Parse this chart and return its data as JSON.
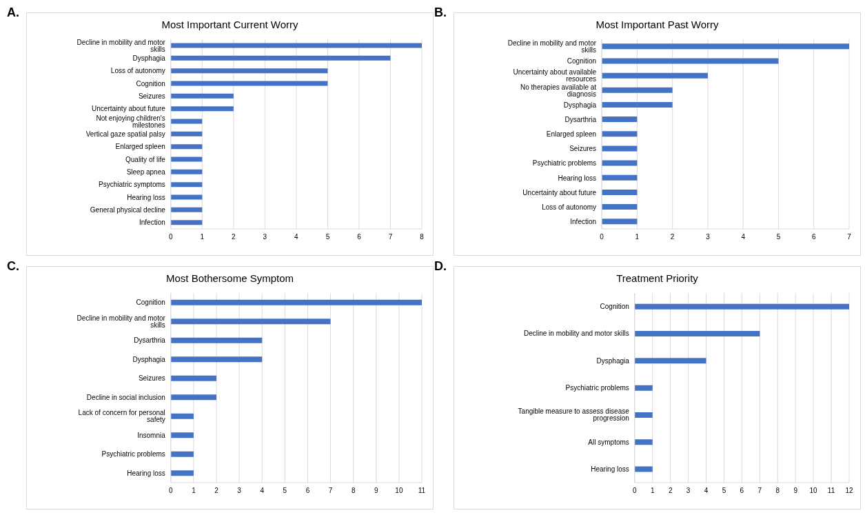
{
  "chart_data": [
    {
      "type": "bar",
      "orientation": "horizontal",
      "title": "Most Important Current Worry",
      "annotations": [
        "A."
      ],
      "color": "#4472c4",
      "grid": "x",
      "xlim": [
        0,
        8
      ],
      "xticks": [
        0,
        1,
        2,
        3,
        4,
        5,
        6,
        7,
        8
      ],
      "categories": [
        "Decline in mobility and motor skills",
        "Dysphagia",
        "Loss of autonomy",
        "Cognition",
        "Seizures",
        "Uncertainty about future",
        "Not enjoying children's milestones",
        "Vertical gaze spatial palsy",
        "Enlarged spleen",
        "Quality of life",
        "Sleep apnea",
        "Psychiatric symptoms",
        "Hearing loss",
        "General physical decline",
        "Infection"
      ],
      "values": [
        8,
        7,
        5,
        5,
        2,
        2,
        1,
        1,
        1,
        1,
        1,
        1,
        1,
        1,
        1
      ]
    },
    {
      "type": "bar",
      "orientation": "horizontal",
      "title": "Most Important Past Worry",
      "annotations": [
        "B."
      ],
      "color": "#4472c4",
      "grid": "x",
      "xlim": [
        0,
        7
      ],
      "xticks": [
        0,
        1,
        2,
        3,
        4,
        5,
        6,
        7
      ],
      "categories": [
        "Decline in mobility and motor skills",
        "Cognition",
        "Uncertainty about available resources",
        "No therapies available at diagnosis",
        "Dysphagia",
        "Dysarthria",
        "Enlarged spleen",
        "Seizures",
        "Psychiatric problems",
        "Hearing loss",
        "Uncertainty about future",
        "Loss of autonomy",
        "Infection"
      ],
      "values": [
        7,
        5,
        3,
        2,
        2,
        1,
        1,
        1,
        1,
        1,
        1,
        1,
        1
      ]
    },
    {
      "type": "bar",
      "orientation": "horizontal",
      "title": "Most Bothersome Symptom",
      "annotations": [
        "C."
      ],
      "color": "#4472c4",
      "grid": "x",
      "xlim": [
        0,
        11
      ],
      "xticks": [
        0,
        1,
        2,
        3,
        4,
        5,
        6,
        7,
        8,
        9,
        10,
        11
      ],
      "categories": [
        "Cognition",
        "Decline in mobility and motor skills",
        "Dysarthria",
        "Dysphagia",
        "Seizures",
        "Decline in social inclusion",
        "Lack of concern for personal safety",
        "Insomnia",
        "Psychiatric problems",
        "Hearing loss"
      ],
      "values": [
        11,
        7,
        4,
        4,
        2,
        2,
        1,
        1,
        1,
        1
      ]
    },
    {
      "type": "bar",
      "orientation": "horizontal",
      "title": "Treatment Priority",
      "annotations": [
        "D."
      ],
      "color": "#4472c4",
      "grid": "x",
      "xlim": [
        0,
        12
      ],
      "xticks": [
        0,
        1,
        2,
        3,
        4,
        5,
        6,
        7,
        8,
        9,
        10,
        11,
        12
      ],
      "categories": [
        "Cognition",
        "Decline in mobility and motor skills",
        "Dysphagia",
        "Psychiatric problems",
        "Tangible measure to assess disease progression",
        "All symptoms",
        "Hearing loss"
      ],
      "values": [
        12,
        7,
        4,
        1,
        1,
        1,
        1
      ]
    }
  ]
}
